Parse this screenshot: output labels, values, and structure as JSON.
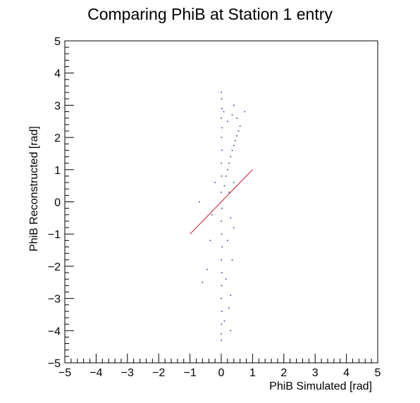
{
  "chart_data": {
    "type": "scatter",
    "title": "Comparing PhiB at Station 1 entry",
    "xlabel": "PhiB Simulated [rad]",
    "ylabel": "PhiB Reconstructed [rad]",
    "xlim": [
      -5,
      5
    ],
    "ylim": [
      -5,
      5
    ],
    "xticks": [
      "−5",
      "−4",
      "−3",
      "−2",
      "−1",
      "0",
      "1",
      "2",
      "3",
      "4",
      "5"
    ],
    "yticks": [
      "−5",
      "−4",
      "−3",
      "−2",
      "−1",
      "0",
      "1",
      "2",
      "3",
      "4",
      "5"
    ],
    "grid": false,
    "legend": "none",
    "series": [
      {
        "kind": "points",
        "color": "#1f3f99",
        "points": [
          [
            0.0,
            3.4
          ],
          [
            0.01,
            3.2
          ],
          [
            0.02,
            2.9
          ],
          [
            0.0,
            2.6
          ],
          [
            0.03,
            2.3
          ],
          [
            0.01,
            2.0
          ],
          [
            0.02,
            1.6
          ],
          [
            0.0,
            1.2
          ],
          [
            0.01,
            0.8
          ],
          [
            0.0,
            0.3
          ],
          [
            0.02,
            -0.2
          ],
          [
            0.0,
            -0.6
          ],
          [
            0.01,
            -1.0
          ],
          [
            0.03,
            -1.4
          ],
          [
            0.0,
            -1.8
          ],
          [
            0.02,
            -2.2
          ],
          [
            0.01,
            -2.6
          ],
          [
            0.0,
            -3.0
          ],
          [
            0.02,
            -3.4
          ],
          [
            0.01,
            -3.8
          ],
          [
            0.0,
            -4.1
          ],
          [
            0.0,
            -4.3
          ],
          [
            0.1,
            0.5
          ],
          [
            0.15,
            0.8
          ],
          [
            0.2,
            1.0
          ],
          [
            0.25,
            1.2
          ],
          [
            0.3,
            1.4
          ],
          [
            0.35,
            1.6
          ],
          [
            0.4,
            1.75
          ],
          [
            0.45,
            1.9
          ],
          [
            0.5,
            2.05
          ],
          [
            0.55,
            2.2
          ],
          [
            0.6,
            2.35
          ],
          [
            0.08,
            2.8
          ],
          [
            0.2,
            2.5
          ],
          [
            0.35,
            2.7
          ],
          [
            0.5,
            2.6
          ],
          [
            0.75,
            2.8
          ],
          [
            0.4,
            3.0
          ],
          [
            0.25,
            0.3
          ],
          [
            0.4,
            0.6
          ],
          [
            0.3,
            -0.5
          ],
          [
            0.2,
            -1.2
          ],
          [
            0.35,
            -1.8
          ],
          [
            0.15,
            -2.4
          ],
          [
            0.3,
            -2.9
          ],
          [
            0.25,
            -3.3
          ],
          [
            0.1,
            -3.7
          ],
          [
            0.3,
            -4.0
          ],
          [
            0.4,
            -0.8
          ],
          [
            -0.6,
            -2.5
          ],
          [
            -0.45,
            -2.1
          ],
          [
            -0.35,
            -1.2
          ],
          [
            -0.3,
            -0.4
          ],
          [
            -0.2,
            0.6
          ],
          [
            -0.7,
            0.0
          ]
        ]
      },
      {
        "kind": "line",
        "color": "#cc1122",
        "points": [
          [
            -1.0,
            -1.0
          ],
          [
            1.0,
            1.0
          ]
        ]
      }
    ]
  }
}
